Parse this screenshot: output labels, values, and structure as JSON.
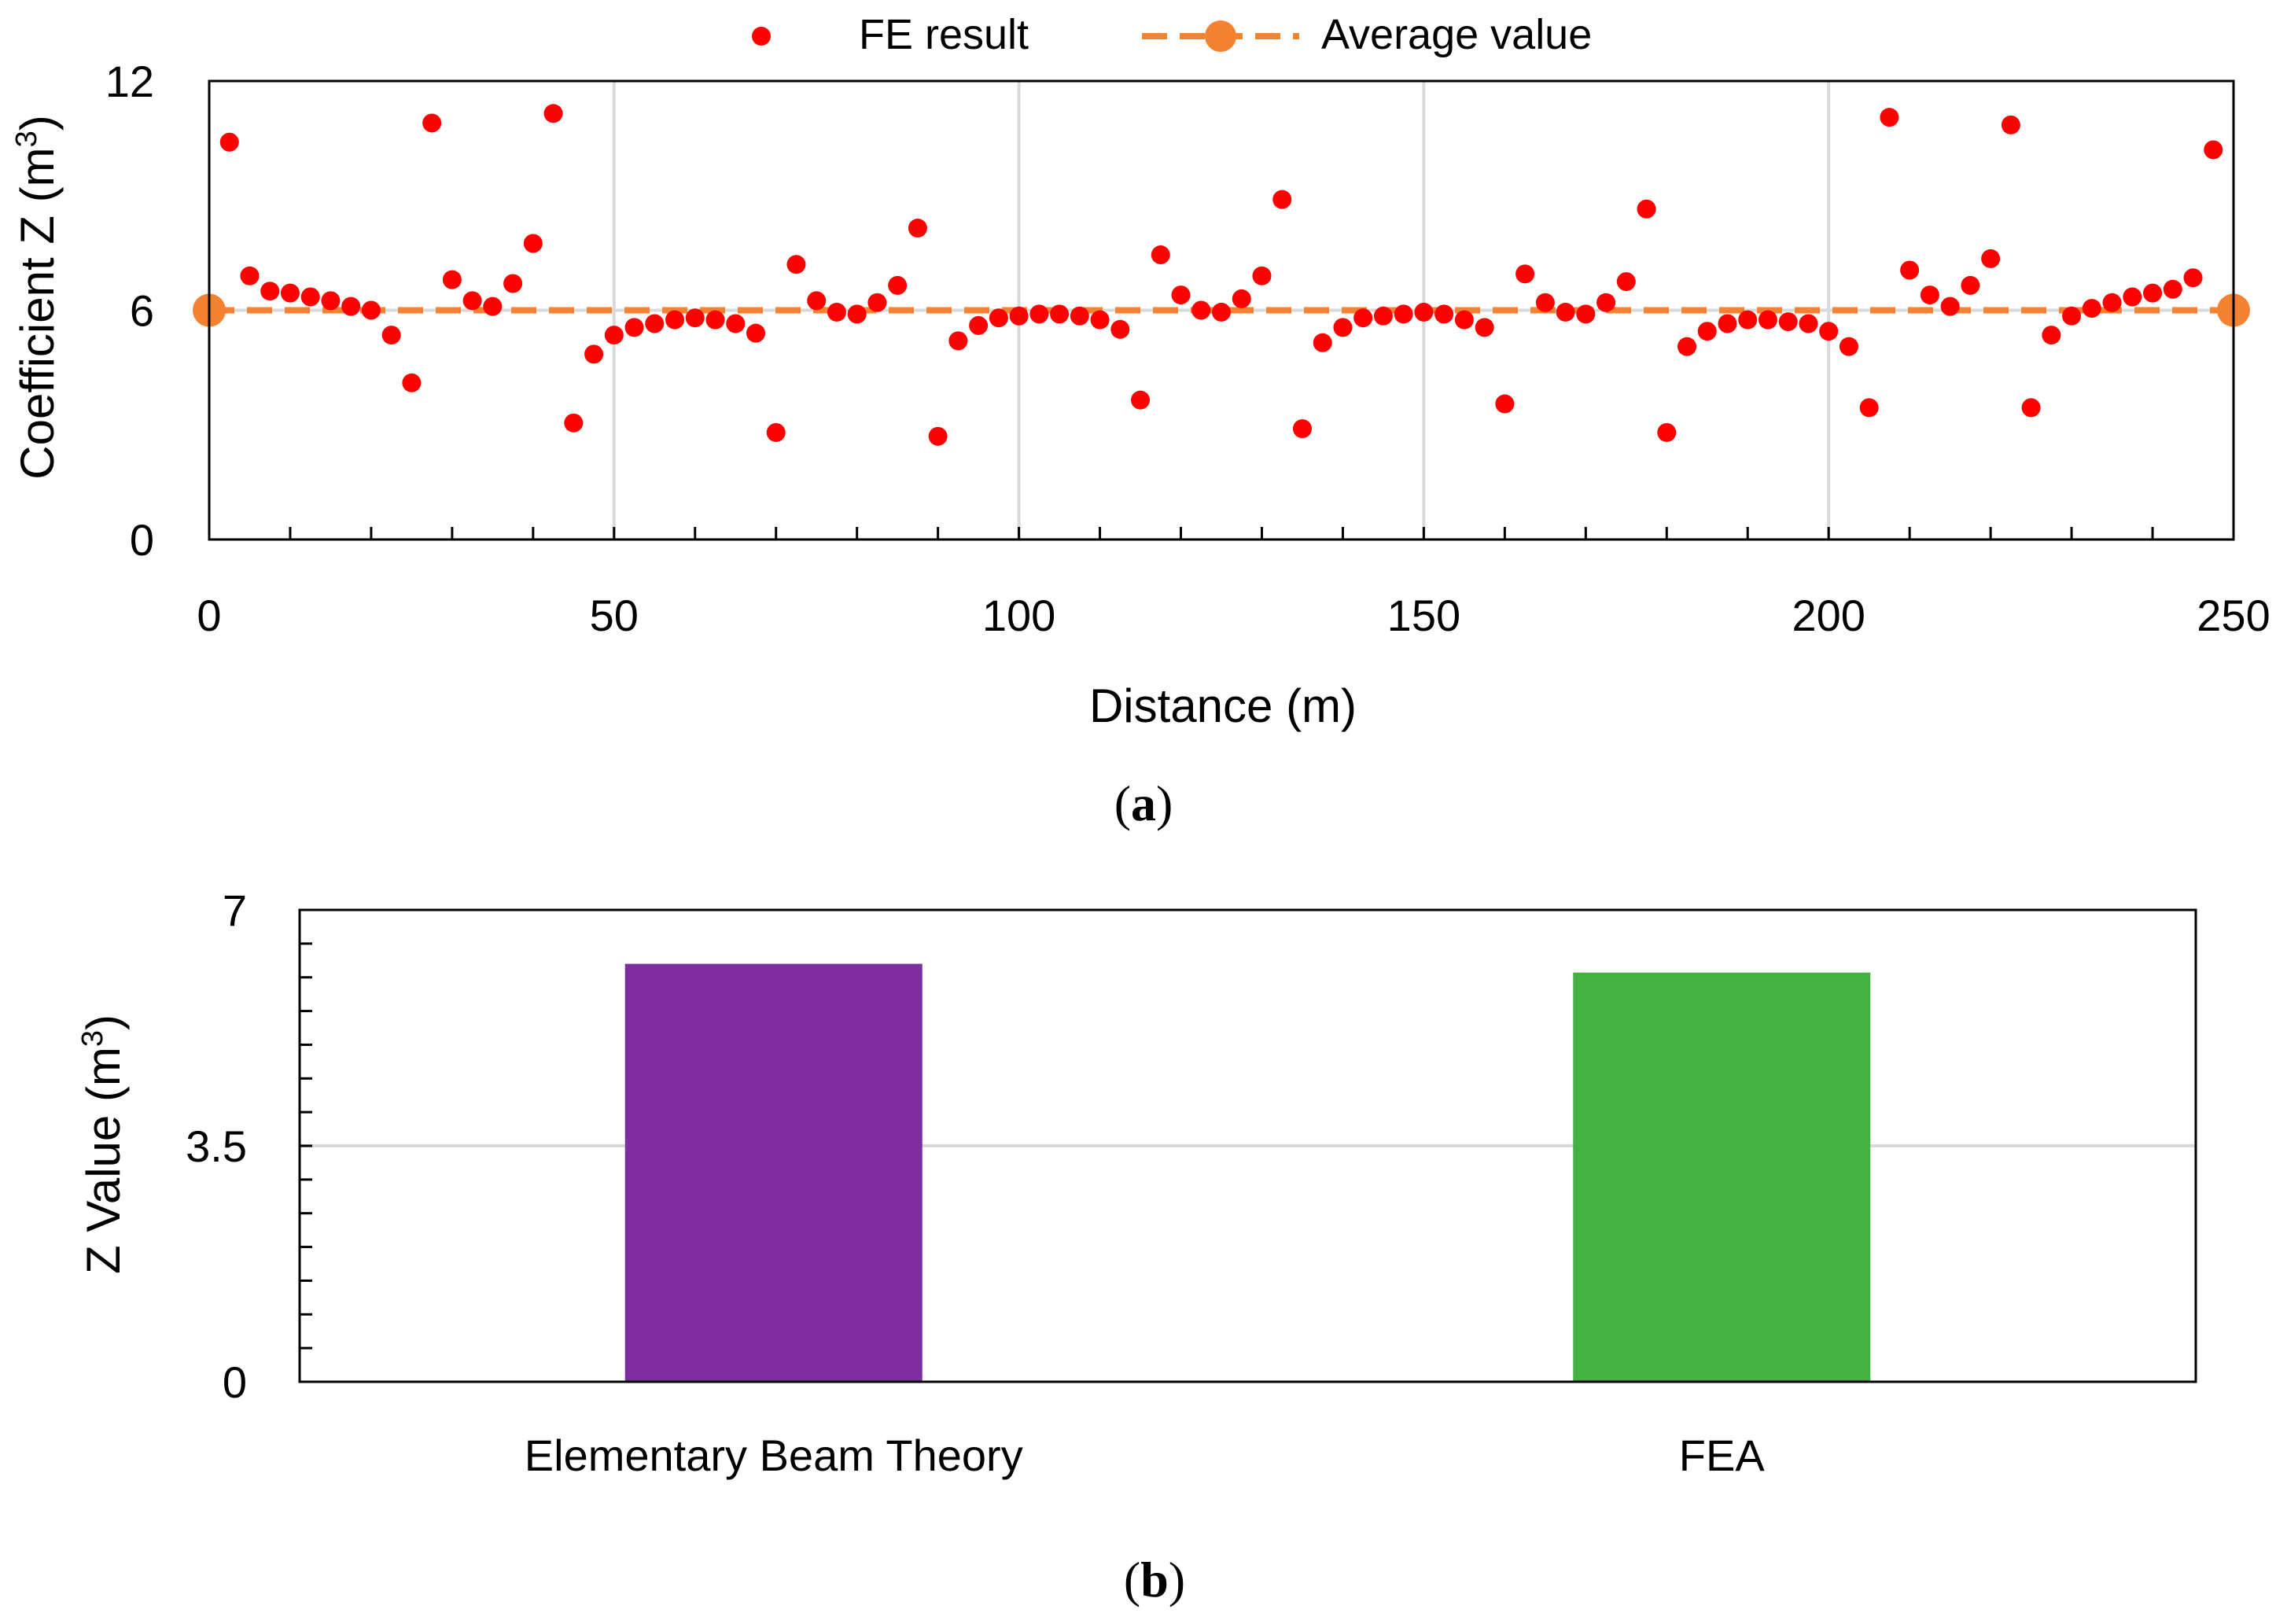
{
  "chart_data": [
    {
      "type": "scatter",
      "panel_label": "(a)",
      "panel_label_letter": "a",
      "xlabel": "Distance (m)",
      "ylabel_main": "Coefficient Z (m",
      "ylabel_sup": "3",
      "ylabel_end": ")",
      "xlim": [
        0,
        250
      ],
      "ylim": [
        0,
        12
      ],
      "xticks": [
        0,
        50,
        100,
        150,
        200,
        250
      ],
      "xtick_labels": [
        "0",
        "50",
        "100",
        "150",
        "200",
        "250"
      ],
      "yticks": [
        0,
        6,
        12
      ],
      "ytick_labels": [
        "0",
        "6",
        "12"
      ],
      "grid_x": true,
      "grid_y": true,
      "legend_position": "top-center",
      "series": [
        {
          "name": "FE result",
          "color": "#ff0000",
          "marker": "circle",
          "points": [
            [
              2.5,
              10.4
            ],
            [
              5,
              6.9
            ],
            [
              7.5,
              6.5
            ],
            [
              10,
              6.45
            ],
            [
              12.5,
              6.35
            ],
            [
              15,
              6.25
            ],
            [
              17.5,
              6.1
            ],
            [
              20,
              6.0
            ],
            [
              22.5,
              5.35
            ],
            [
              25,
              4.1
            ],
            [
              27.5,
              10.9
            ],
            [
              30,
              6.8
            ],
            [
              32.5,
              6.25
            ],
            [
              35,
              6.1
            ],
            [
              37.5,
              6.7
            ],
            [
              40,
              7.75
            ],
            [
              42.5,
              11.15
            ],
            [
              45,
              3.05
            ],
            [
              47.5,
              4.85
            ],
            [
              50,
              5.35
            ],
            [
              52.5,
              5.55
            ],
            [
              55,
              5.65
            ],
            [
              57.5,
              5.75
            ],
            [
              60,
              5.8
            ],
            [
              62.5,
              5.75
            ],
            [
              65,
              5.65
            ],
            [
              67.5,
              5.4
            ],
            [
              70,
              2.8
            ],
            [
              72.5,
              7.2
            ],
            [
              75,
              6.25
            ],
            [
              77.5,
              5.95
            ],
            [
              80,
              5.9
            ],
            [
              82.5,
              6.2
            ],
            [
              85,
              6.65
            ],
            [
              87.5,
              8.15
            ],
            [
              90,
              2.7
            ],
            [
              92.5,
              5.2
            ],
            [
              95,
              5.6
            ],
            [
              97.5,
              5.8
            ],
            [
              100,
              5.85
            ],
            [
              102.5,
              5.9
            ],
            [
              105,
              5.9
            ],
            [
              107.5,
              5.85
            ],
            [
              110,
              5.75
            ],
            [
              112.5,
              5.5
            ],
            [
              115,
              3.65
            ],
            [
              117.5,
              7.45
            ],
            [
              120,
              6.4
            ],
            [
              122.5,
              6.0
            ],
            [
              125,
              5.95
            ],
            [
              127.5,
              6.3
            ],
            [
              130,
              6.9
            ],
            [
              132.5,
              8.9
            ],
            [
              135,
              2.9
            ],
            [
              137.5,
              5.15
            ],
            [
              140,
              5.55
            ],
            [
              142.5,
              5.8
            ],
            [
              145,
              5.85
            ],
            [
              147.5,
              5.9
            ],
            [
              150,
              5.95
            ],
            [
              152.5,
              5.9
            ],
            [
              155,
              5.75
            ],
            [
              157.5,
              5.55
            ],
            [
              160,
              3.55
            ],
            [
              162.5,
              6.95
            ],
            [
              165,
              6.2
            ],
            [
              167.5,
              5.95
            ],
            [
              170,
              5.9
            ],
            [
              172.5,
              6.2
            ],
            [
              175,
              6.75
            ],
            [
              177.5,
              8.65
            ],
            [
              180,
              2.8
            ],
            [
              182.5,
              5.05
            ],
            [
              185,
              5.45
            ],
            [
              187.5,
              5.65
            ],
            [
              190,
              5.75
            ],
            [
              192.5,
              5.75
            ],
            [
              195,
              5.7
            ],
            [
              197.5,
              5.65
            ],
            [
              200,
              5.45
            ],
            [
              202.5,
              5.05
            ],
            [
              205,
              3.45
            ],
            [
              207.5,
              11.05
            ],
            [
              210,
              7.05
            ],
            [
              212.5,
              6.4
            ],
            [
              215,
              6.1
            ],
            [
              217.5,
              6.65
            ],
            [
              220,
              7.35
            ],
            [
              222.5,
              10.85
            ],
            [
              225,
              3.45
            ],
            [
              227.5,
              5.35
            ],
            [
              230,
              5.85
            ],
            [
              232.5,
              6.05
            ],
            [
              235,
              6.2
            ],
            [
              237.5,
              6.35
            ],
            [
              240,
              6.45
            ],
            [
              242.5,
              6.55
            ],
            [
              245,
              6.85
            ],
            [
              247.5,
              10.2
            ]
          ]
        },
        {
          "name": "Average value",
          "color": "#f58231",
          "style": "dashed",
          "points": [
            [
              0,
              6.0
            ],
            [
              250,
              6.0
            ]
          ]
        }
      ]
    },
    {
      "type": "bar",
      "panel_label": "(b)",
      "panel_label_letter": "b",
      "ylabel_main": "Z Value (m",
      "ylabel_sup": "3",
      "ylabel_end": ")",
      "ylim": [
        0,
        7
      ],
      "yticks": [
        0,
        3.5,
        7
      ],
      "ytick_labels": [
        "0",
        "3.5",
        "7"
      ],
      "grid_y": true,
      "categories": [
        "Elementary Beam Theory",
        "FEA"
      ],
      "values": [
        6.2,
        6.07
      ],
      "colors": [
        "#7f2ea0",
        "#43b03f"
      ]
    }
  ]
}
